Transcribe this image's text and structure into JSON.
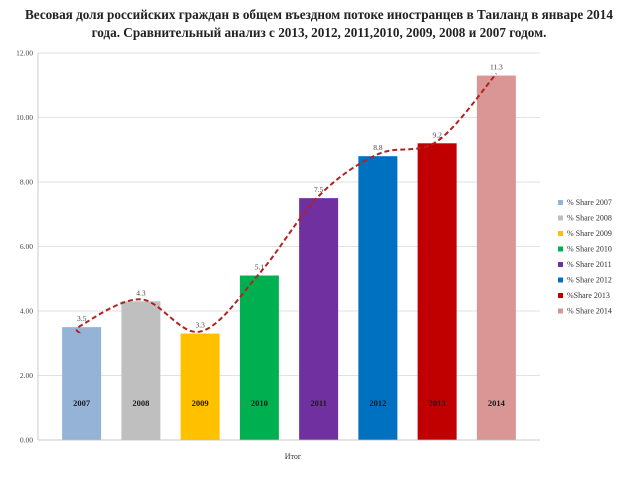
{
  "chart_data": {
    "type": "bar",
    "title": "Весовая доля российских граждан в общем въездном потоке иностранцев в Таиланд в январе 2014 года.  Сравнительный анализ с 2013, 2012, 2011,2010, 2009, 2008 и 2007 годом.",
    "xlabel": "Итог",
    "ylabel": "",
    "ylim": [
      0,
      12
    ],
    "yticks": [
      "0.00",
      "2.00",
      "4.00",
      "6.00",
      "8.00",
      "10.00",
      "12.00"
    ],
    "ytick_values": [
      0,
      2,
      4,
      6,
      8,
      10,
      12
    ],
    "grid": true,
    "legend_position": "right",
    "trendline": true,
    "trendline_color": "#b22222",
    "series": [
      {
        "name": "% Share 2007",
        "year_label": "2007",
        "value": 3.5,
        "value_label": "3.5",
        "color": "#95b3d7"
      },
      {
        "name": "% Share 2008",
        "year_label": "2008",
        "value": 4.3,
        "value_label": "4.3",
        "color": "#bfbfbf"
      },
      {
        "name": "% Share 2009",
        "year_label": "2009",
        "value": 3.3,
        "value_label": "3.3",
        "color": "#ffc000"
      },
      {
        "name": "% Share 2010",
        "year_label": "2010",
        "value": 5.1,
        "value_label": "5.1",
        "color": "#00b050"
      },
      {
        "name": "% Share 2011",
        "year_label": "2011",
        "value": 7.5,
        "value_label": "7.5",
        "color": "#7030a0"
      },
      {
        "name": "% Share 2012",
        "year_label": "2012",
        "value": 8.8,
        "value_label": "8.8",
        "color": "#0070c0"
      },
      {
        "name": "%Share 2013",
        "year_label": "2013",
        "value": 9.2,
        "value_label": "9.2",
        "color": "#c00000"
      },
      {
        "name": "% Share 2014",
        "year_label": "2014",
        "value": 11.3,
        "value_label": "11.3",
        "color": "#d99694"
      }
    ]
  }
}
